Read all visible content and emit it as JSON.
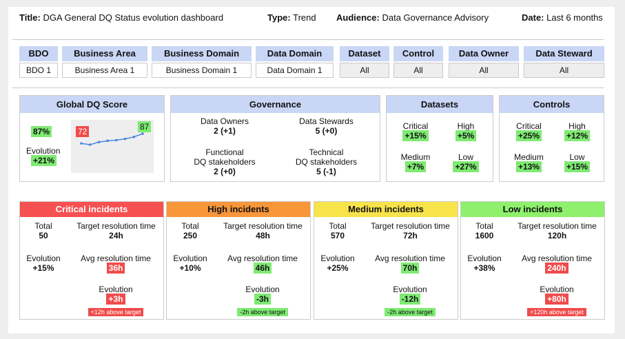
{
  "header": {
    "title_label": "Title:",
    "title": "DGA General DQ Status evolution dashboard",
    "type_label": "Type:",
    "type": "Trend",
    "audience_label": "Audience:",
    "audience": "Data Governance Advisory",
    "date_label": "Date:",
    "date": "Last 6 months"
  },
  "filters": [
    {
      "label": "BDO",
      "value": "BDO 1"
    },
    {
      "label": "Business Area",
      "value": "Business Area 1"
    },
    {
      "label": "Business Domain",
      "value": "Business Domain 1"
    },
    {
      "label": "Data Domain",
      "value": "Data Domain 1"
    },
    {
      "label": "Dataset",
      "value": "All"
    },
    {
      "label": "Control",
      "value": "All"
    },
    {
      "label": "Data Owner",
      "value": "All"
    },
    {
      "label": "Data Steward",
      "value": "All"
    }
  ],
  "dq_score": {
    "title": "Global DQ Score",
    "value": "87%",
    "evolution_label": "Evolution",
    "evolution": "+21%",
    "start_label": "72",
    "end_label": "87",
    "trend": [
      72,
      70,
      74,
      76,
      77,
      79,
      82,
      87
    ]
  },
  "governance": {
    "title": "Governance",
    "owners_label": "Data Owners",
    "owners_value": "2 (+1)",
    "stewards_label": "Data Stewards",
    "stewards_value": "5 (+0)",
    "functional_label1": "Functional",
    "functional_label2": "DQ stakeholders",
    "functional_value": "2 (+0)",
    "technical_label1": "Technical",
    "technical_label2": "DQ stakeholders",
    "technical_value": "5 (-1)"
  },
  "datasets": {
    "title": "Datasets",
    "critical_label": "Critical",
    "critical": "+15%",
    "high_label": "High",
    "high": "+5%",
    "medium_label": "Medium",
    "medium": "+7%",
    "low_label": "Low",
    "low": "+27%"
  },
  "controls": {
    "title": "Controls",
    "critical_label": "Critical",
    "critical": "+25%",
    "high_label": "High",
    "high": "+12%",
    "medium_label": "Medium",
    "medium": "+13%",
    "low_label": "Low",
    "low": "+15%"
  },
  "incidents": [
    {
      "title": "Critical incidents",
      "color": "#f65050",
      "title_color": "#ffffff",
      "total": "50",
      "target": "24h",
      "evolution": "+15%",
      "avg": "36h",
      "avg_state": "bad",
      "avg_evolution": "+3h",
      "note": "+12h above target",
      "note_state": "bad"
    },
    {
      "title": "High incidents",
      "color": "#f8963a",
      "title_color": "#111111",
      "total": "250",
      "target": "48h",
      "evolution": "+10%",
      "avg": "46h",
      "avg_state": "good",
      "avg_evolution": "-3h",
      "note": "-2h above target",
      "note_state": "good"
    },
    {
      "title": "Medium incidents",
      "color": "#f7e34a",
      "title_color": "#111111",
      "total": "570",
      "target": "72h",
      "evolution": "+25%",
      "avg": "70h",
      "avg_state": "good",
      "avg_evolution": "-12h",
      "note": "-2h above target",
      "note_state": "good"
    },
    {
      "title": "Low incidents",
      "color": "#8ef06c",
      "title_color": "#111111",
      "total": "1600",
      "target": "120h",
      "evolution": "+38%",
      "avg": "240h",
      "avg_state": "bad",
      "avg_evolution": "+80h",
      "note": "+120h above target",
      "note_state": "bad"
    }
  ],
  "incident_labels": {
    "total": "Total",
    "target": "Target resolution time",
    "evolution": "Evolution",
    "avg": "Avg resolution time",
    "avg_evolution": "Evolution"
  },
  "colors": {
    "header_blue": "#c9d6f5",
    "good": "#7fea73",
    "bad": "#f04b4b"
  }
}
